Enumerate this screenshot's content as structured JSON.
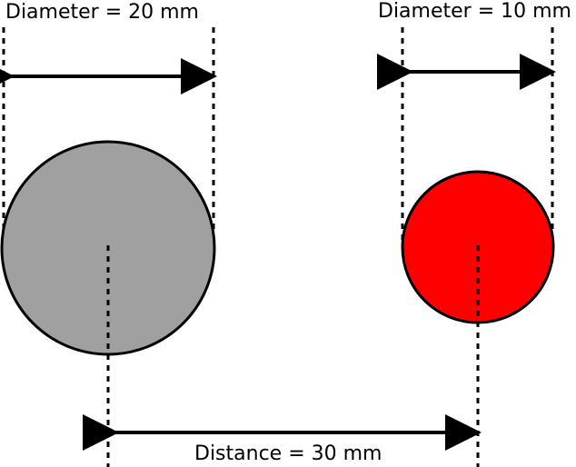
{
  "labels": {
    "left_diameter": "Diameter = 20 mm",
    "right_diameter": "Diameter = 10 mm",
    "distance": "Distance = 30 mm"
  },
  "shapes": {
    "large_circle": {
      "diameter_mm": 20,
      "fill": "#a0a0a0",
      "stroke": "#000000"
    },
    "small_circle": {
      "diameter_mm": 10,
      "fill": "#ff0000",
      "stroke": "#000000"
    },
    "center_distance_mm": 30
  },
  "colors": {
    "line": "#000000",
    "background": "#ffffff"
  }
}
